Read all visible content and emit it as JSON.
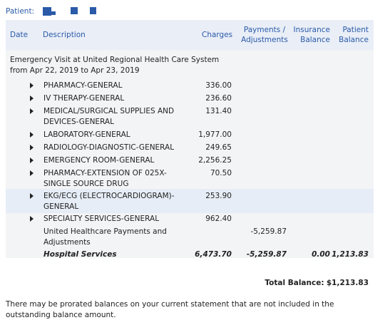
{
  "patient": {
    "label": "Patient:"
  },
  "columns": {
    "date": "Date",
    "description": "Description",
    "charges": "Charges",
    "payments_adjustments": "Payments / Adjustments",
    "insurance_balance": "Insurance Balance",
    "patient_balance": "Patient Balance"
  },
  "visit": {
    "title": "Emergency Visit at United Regional Health Care System from Apr 22, 2019 to Apr 23, 2019",
    "items": [
      {
        "description": "PHARMACY-GENERAL",
        "charge": "336.00"
      },
      {
        "description": "IV THERAPY-GENERAL",
        "charge": "236.60"
      },
      {
        "description": "MEDICAL/SURGICAL SUPPLIES AND DEVICES-GENERAL",
        "charge": "131.40"
      },
      {
        "description": "LABORATORY-GENERAL",
        "charge": "1,977.00"
      },
      {
        "description": "RADIOLOGY-DIAGNOSTIC-GENERAL",
        "charge": "249.65"
      },
      {
        "description": "EMERGENCY ROOM-GENERAL",
        "charge": "2,256.25"
      },
      {
        "description": "PHARMACY-EXTENSION OF 025X-SINGLE SOURCE DRUG",
        "charge": "70.50"
      },
      {
        "description": "EKG/ECG (ELECTROCARDIOGRAM)-GENERAL",
        "charge": "253.90"
      },
      {
        "description": "SPECIALTY SERVICES-GENERAL",
        "charge": "962.40"
      }
    ],
    "adjustment": {
      "description": "United Healthcare Payments and Adjustments",
      "payment": "-5,259.87"
    },
    "subtotal": {
      "label": "Hospital Services",
      "charges": "6,473.70",
      "payments": "-5,259.87",
      "insurance_balance": "0.00",
      "patient_balance": "1,213.83"
    }
  },
  "total": {
    "label": "Total Balance:",
    "value": "$1,213.83"
  },
  "footnote": "There may be prorated balances on your current statement that are not included in the outstanding balance amount."
}
